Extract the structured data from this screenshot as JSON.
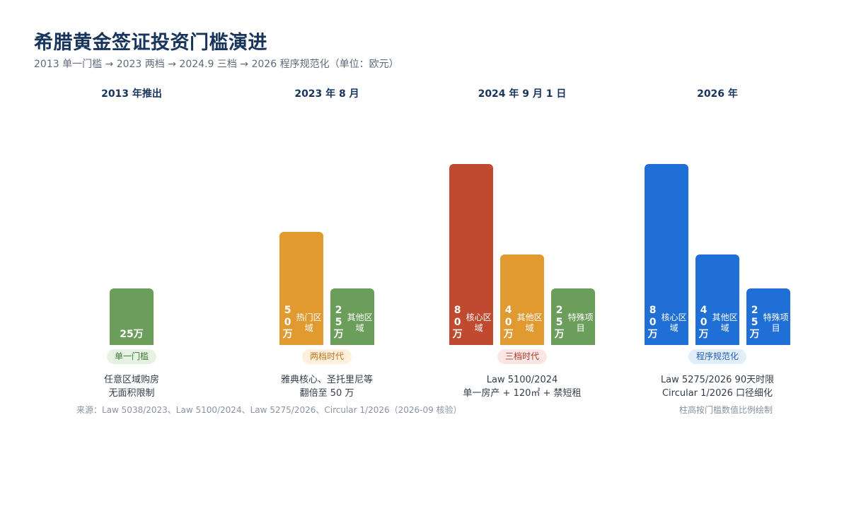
{
  "title": "希腊黄金签证投资门槛演进",
  "subtitle": "2013 单一门槛 → 2023 两档 → 2024.9 三档 → 2026 程序规范化（单位：欧元）",
  "chart_data": {
    "type": "bar",
    "unit": "万",
    "ylim": [
      0,
      80
    ],
    "groups": [
      {
        "period": "2013 年推出",
        "bars": [
          {
            "value": 25,
            "value_label": "25万",
            "name": "",
            "color": "#6a9e5a"
          }
        ],
        "badge": {
          "text": "单一门槛",
          "bg": "#e6f3e3",
          "fg": "#3f7a34"
        },
        "description": [
          "任意区域购房",
          "无面积限制"
        ]
      },
      {
        "period": "2023 年 8 月",
        "bars": [
          {
            "value": 50,
            "value_label": "50万",
            "name": "热门区域",
            "color": "#e09a30"
          },
          {
            "value": 25,
            "value_label": "25万",
            "name": "其他区域",
            "color": "#6a9e5a"
          }
        ],
        "badge": {
          "text": "两档时代",
          "bg": "#fdf0dc",
          "fg": "#c2741a"
        },
        "description": [
          "雅典核心、圣托里尼等",
          "翻倍至 50 万"
        ]
      },
      {
        "period": "2024 年 9 月 1 日",
        "bars": [
          {
            "value": 80,
            "value_label": "80万",
            "name": "核心区域",
            "color": "#c04a30"
          },
          {
            "value": 40,
            "value_label": "40万",
            "name": "其他区域",
            "color": "#e09a30"
          },
          {
            "value": 25,
            "value_label": "25万",
            "name": "特殊项目",
            "color": "#6a9e5a"
          }
        ],
        "badge": {
          "text": "三档时代",
          "bg": "#fbe6e3",
          "fg": "#b23a2a"
        },
        "description": [
          "Law 5100/2024",
          "单一房产 + 120㎡ + 禁短租"
        ]
      },
      {
        "period": "2026 年",
        "bars": [
          {
            "value": 80,
            "value_label": "80万",
            "name": "核心区域",
            "color": "#1f6fd6"
          },
          {
            "value": 40,
            "value_label": "40万",
            "name": "其他区域",
            "color": "#1f6fd6"
          },
          {
            "value": 25,
            "value_label": "25万",
            "name": "特殊项目",
            "color": "#1f6fd6"
          }
        ],
        "badge": {
          "text": "程序规范化",
          "bg": "#e3eefb",
          "fg": "#1f5fb5"
        },
        "description": [
          "Law 5275/2026 90天时限",
          "Circular 1/2026 口径细化"
        ]
      }
    ]
  },
  "footer": {
    "source": "来源：Law 5038/2023、Law 5100/2024、Law 5275/2026、Circular 1/2026（2026-09 核验）",
    "note": "柱高按门槛数值比例绘制"
  }
}
